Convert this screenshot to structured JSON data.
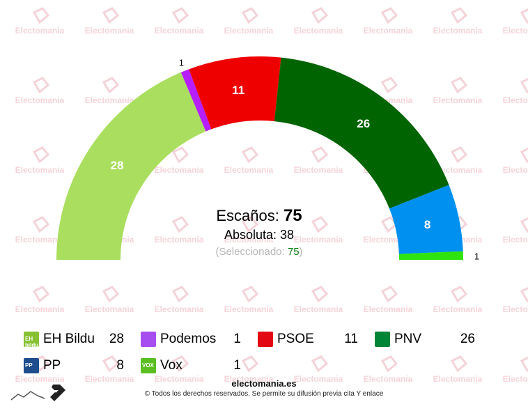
{
  "chart_data": {
    "type": "hemicycle",
    "total_seats": 75,
    "series": [
      {
        "name": "EH Bildu",
        "value": 28,
        "color": "#aade5e",
        "logo_text": "EH bildu"
      },
      {
        "name": "Podemos",
        "value": 1,
        "color": "#b61dff",
        "logo_text": ""
      },
      {
        "name": "PSOE",
        "value": 11,
        "color": "#ef0000",
        "logo_text": ""
      },
      {
        "name": "PNV",
        "value": 26,
        "color": "#006400",
        "logo_text": ""
      },
      {
        "name": "PP",
        "value": 8,
        "color": "#0090f0",
        "logo_text": "PP"
      },
      {
        "name": "Vox",
        "value": 1,
        "color": "#2fe30e",
        "logo_text": "VOX"
      }
    ],
    "legend_logo_colors": [
      "#87c131",
      "#a64ef0",
      "#e30613",
      "#008537",
      "#1d4d8c",
      "#5bbf21"
    ]
  },
  "center": {
    "escanos_label": "Escaños:",
    "escanos_value": "75",
    "absoluta_label": "Absoluta:",
    "absoluta_value": "38",
    "seleccionado_open": "(Seleccionado:",
    "seleccionado_value": "75",
    "seleccionado_close": ")"
  },
  "watermark": {
    "text": "Electomania"
  },
  "footer": {
    "brand": "electomania.es",
    "copyright": "© Todos los derechos reservados. Se permite su difusión previa cita Y enlace"
  }
}
